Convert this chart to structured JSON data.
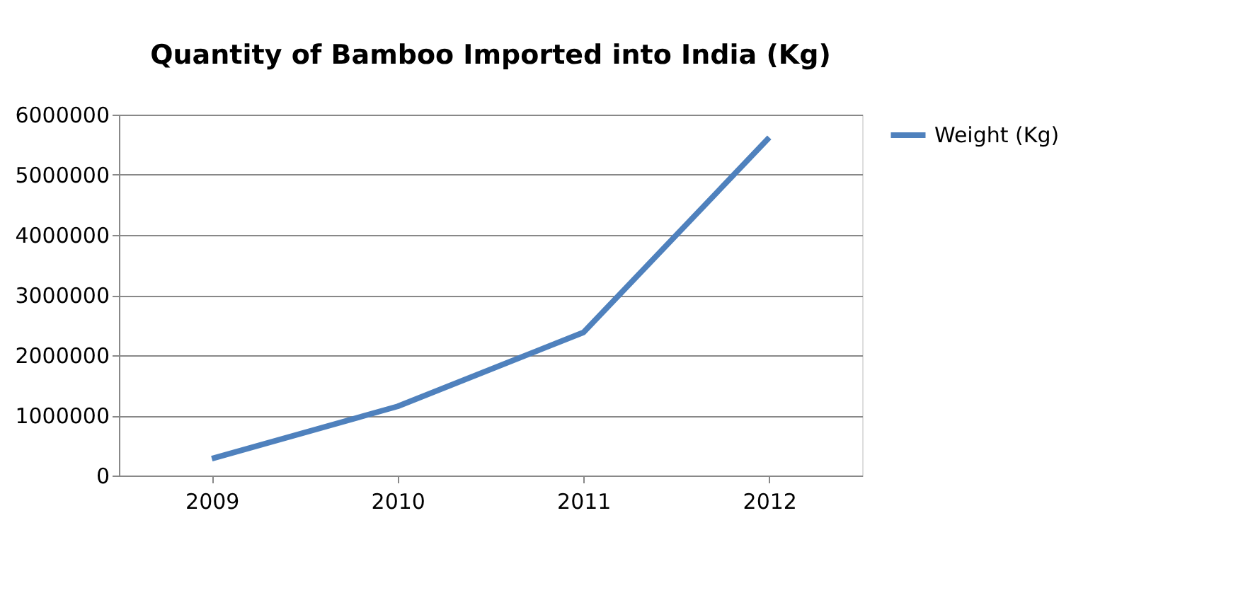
{
  "chart_data": {
    "type": "line",
    "title": "Quantity of Bamboo Imported into India (Kg)",
    "categories": [
      "2009",
      "2010",
      "2011",
      "2012"
    ],
    "series": [
      {
        "name": "Weight (Kg)",
        "color": "#4f81bd",
        "values": [
          280000,
          1150000,
          2380000,
          5620000
        ]
      }
    ],
    "ylim": [
      0,
      6000000
    ],
    "yticks": [
      0,
      1000000,
      2000000,
      3000000,
      4000000,
      5000000,
      6000000
    ],
    "grid": "y",
    "legend": "right",
    "marker": "none",
    "line_style": "solid"
  }
}
